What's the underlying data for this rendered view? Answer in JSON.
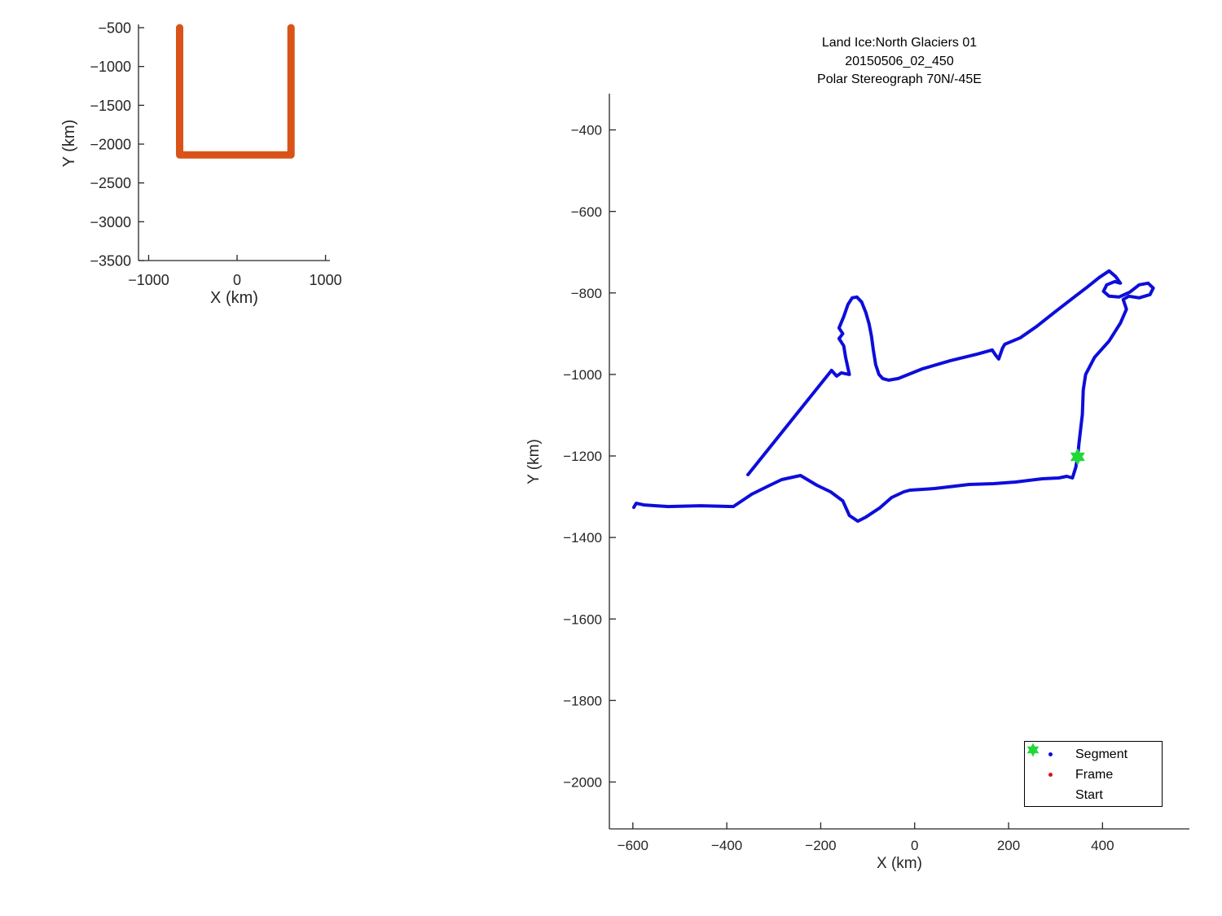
{
  "colors": {
    "background": "#FFFFFF",
    "axis": "#262626"
  },
  "chart_data": [
    {
      "name": "overview-map",
      "type": "line",
      "xlabel": "X (km)",
      "ylabel": "Y (km)",
      "xlim": [
        -1115,
        1050
      ],
      "ylim": [
        -3500,
        -458
      ],
      "xticks": [
        -1000,
        0,
        1000
      ],
      "yticks": [
        -500,
        -1000,
        -1500,
        -2000,
        -2500,
        -3000,
        -3500
      ],
      "grid": false,
      "legend": null,
      "series": [
        {
          "name": "coverage-outline",
          "color": "#D95319",
          "linewidth": 9,
          "x": [
            -650,
            -650,
            610,
            610
          ],
          "y": [
            -500,
            -2140,
            -2140,
            -500
          ]
        }
      ]
    },
    {
      "name": "flight-track",
      "type": "line",
      "title_lines": [
        "Land Ice:North Glaciers 01",
        "20150506_02_450",
        "Polar Stereograph 70N/-45E"
      ],
      "xlabel": "X (km)",
      "ylabel": "Y (km)",
      "xlim": [
        -650,
        585
      ],
      "ylim": [
        -2115,
        -311
      ],
      "xticks": [
        -600,
        -400,
        -200,
        0,
        200,
        400
      ],
      "yticks": [
        -400,
        -600,
        -800,
        -1000,
        -1200,
        -1400,
        -1600,
        -1800,
        -2000
      ],
      "grid": false,
      "legend": {
        "position": "lower-right-inside",
        "entries": [
          {
            "label": "Segment",
            "marker": "dot",
            "color": "#0D0DDB"
          },
          {
            "label": "Frame",
            "marker": "dot",
            "color": "#E01010"
          },
          {
            "label": "Start",
            "marker": "hexagram",
            "color": "#1FD938"
          }
        ]
      },
      "series": [
        {
          "name": "Segment",
          "color": "#0D0DDB",
          "linewidth": 4,
          "x": [
            -355,
            -177,
            -166,
            -156,
            -139,
            -147,
            -151,
            -161,
            -153,
            -161,
            -151,
            -142,
            -133,
            -123,
            -113,
            -104,
            -97,
            -92,
            -88,
            -83,
            -76,
            -68,
            -55,
            -35,
            17,
            76,
            133,
            165,
            172,
            179,
            187,
            192,
            225,
            260,
            295,
            333,
            367,
            393,
            414,
            428,
            438,
            426,
            409,
            402,
            414,
            435,
            458,
            478,
            497,
            508,
            501,
            478,
            456,
            444,
            451,
            438,
            414,
            383,
            364,
            359,
            357,
            350,
            347,
            343,
            336,
            324,
            307,
            272,
            215,
            168,
            116,
            42,
            -10,
            -23,
            -49,
            -75,
            -104,
            -121,
            -139,
            -153,
            -179,
            -208,
            -243,
            -283,
            -312,
            -347,
            -386,
            -456,
            -525,
            -577,
            -593,
            -598
          ],
          "y": [
            -1246,
            -990,
            -1004,
            -996,
            -1000,
            -958,
            -930,
            -912,
            -900,
            -886,
            -858,
            -828,
            -812,
            -810,
            -822,
            -848,
            -876,
            -906,
            -940,
            -976,
            -1000,
            -1010,
            -1014,
            -1010,
            -986,
            -966,
            -950,
            -940,
            -952,
            -962,
            -936,
            -926,
            -910,
            -882,
            -850,
            -816,
            -786,
            -762,
            -746,
            -760,
            -776,
            -772,
            -780,
            -796,
            -808,
            -810,
            -798,
            -780,
            -776,
            -788,
            -804,
            -812,
            -808,
            -816,
            -840,
            -874,
            -918,
            -958,
            -1000,
            -1038,
            -1098,
            -1168,
            -1202,
            -1228,
            -1254,
            -1250,
            -1254,
            -1256,
            -1264,
            -1268,
            -1270,
            -1280,
            -1284,
            -1288,
            -1302,
            -1328,
            -1350,
            -1360,
            -1346,
            -1310,
            -1288,
            -1272,
            -1248,
            -1258,
            -1274,
            -1294,
            -1324,
            -1322,
            -1324,
            -1320,
            -1316,
            -1326
          ]
        }
      ],
      "start_marker": {
        "x": 347,
        "y": -1202,
        "color": "#1FD938",
        "shape": "hexagram"
      }
    }
  ]
}
